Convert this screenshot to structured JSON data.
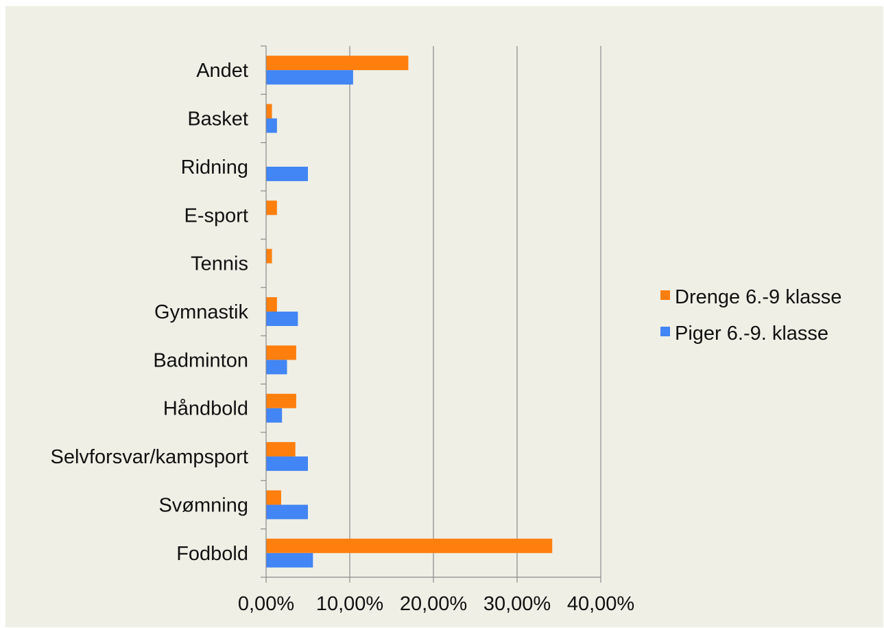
{
  "chart_data": {
    "type": "bar",
    "orientation": "horizontal",
    "categories": [
      "Andet",
      "Basket",
      "Ridning",
      "E-sport",
      "Tennis",
      "Gymnastik",
      "Badminton",
      "Håndbold",
      "Selvforsvar/kampsport",
      "Svømning",
      "Fodbold"
    ],
    "series": [
      {
        "name": "Drenge 6.-9 klasse",
        "color": "#ff7f0e",
        "values": [
          17.0,
          0.7,
          0,
          1.3,
          0.7,
          1.3,
          3.6,
          3.6,
          3.5,
          1.8,
          34.2
        ]
      },
      {
        "name": "Piger 6.-9. klasse",
        "color": "#4285f4",
        "values": [
          10.4,
          1.3,
          5.0,
          0,
          0,
          3.8,
          2.5,
          1.9,
          5.0,
          5.0,
          5.6
        ]
      }
    ],
    "xticks": [
      "0,00%",
      "10,00%",
      "20,00%",
      "30,00%",
      "40,00%"
    ],
    "xlim": [
      0,
      40
    ],
    "grid": true,
    "legend_position": "right",
    "title": "",
    "xlabel": "",
    "ylabel": ""
  }
}
